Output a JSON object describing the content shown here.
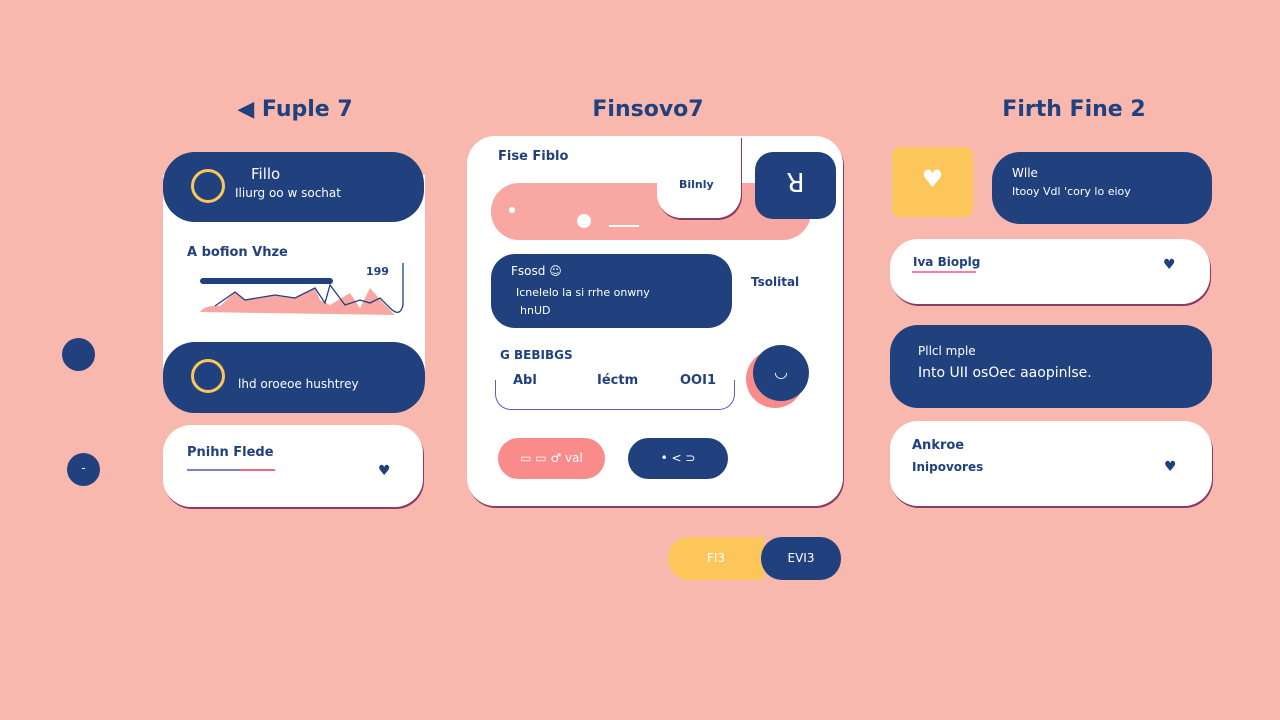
{
  "colors": {
    "background": "#f9b8ae",
    "navy": "#21407e",
    "yellow": "#fdc65a",
    "coral": "#f98b8b"
  },
  "left": {
    "title": "Fuple 7",
    "pill1": {
      "title": "Fillo",
      "subtitle": "Iliurg oo w sochat"
    },
    "chart_card": {
      "label": "A bofion Vhze",
      "value": "199"
    },
    "pill2": {
      "text": "lhd oroeoe hushtrey"
    },
    "card3": {
      "label": "Pnihn Flede",
      "icon": "heart-icon"
    }
  },
  "middle": {
    "title": "Finsovo7",
    "tab_label": "Fise Fiblo",
    "subcard_label": "Bilnly",
    "message": {
      "title": "Fsosd",
      "line1": "Icnelelo la si rrhe onwny",
      "line2": "hnUD"
    },
    "side_label": "Tsolital",
    "section_label": "G BEBIBGS",
    "columns": [
      "Abl",
      "Iéctm",
      "OOI1"
    ],
    "button_coral": "▭ ▭ ♂ val",
    "button_navy": "• < ⊃",
    "button_yellow": "FI3",
    "button_navy2": "EVI3"
  },
  "right": {
    "title": "Firth Fine 2",
    "pill1": {
      "title": "Wlle",
      "subtitle": "Itooy Vdl 'cory lo eioy"
    },
    "card2": {
      "label": "Iva Bioplg"
    },
    "pill3": {
      "title": "Pllcl mple",
      "subtitle": "Into UII osOec aaopinlse."
    },
    "card4": {
      "line1": "Ankroe",
      "line2": "Inipovores"
    }
  }
}
